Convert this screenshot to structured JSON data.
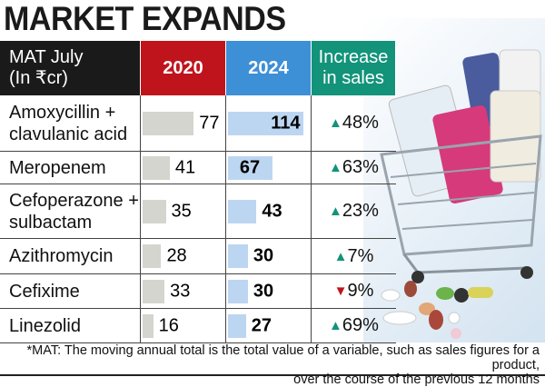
{
  "title": "MARKET EXPANDS",
  "header": {
    "label_line1": "MAT July",
    "label_line2": "(In ₹cr)",
    "col_2020": "2020",
    "col_2024": "2024",
    "inc_line1": "Increase",
    "inc_line2": "in sales"
  },
  "colors": {
    "header_label": "#1a1a1a",
    "header_2020": "#c0141c",
    "header_2024": "#3d8fd6",
    "header_increase": "#12937a",
    "bar_2020": "#d5d5cf",
    "bar_2024": "#bcd6f2",
    "up": "#12937a",
    "down": "#c0141c"
  },
  "chart_data": {
    "type": "table",
    "categories": [
      "Amoxycillin + clavulanic acid",
      "Meropenem",
      "Cefoperazone + sulbactam",
      "Azithromycin",
      "Cefixime",
      "Linezolid"
    ],
    "series": [
      {
        "name": "2020",
        "values": [
          77,
          41,
          35,
          28,
          33,
          16
        ]
      },
      {
        "name": "2024",
        "values": [
          114,
          67,
          43,
          30,
          30,
          27
        ]
      }
    ],
    "increase": [
      {
        "dir": "up",
        "text": "48%"
      },
      {
        "dir": "up",
        "text": "63%"
      },
      {
        "dir": "up",
        "text": "23%"
      },
      {
        "dir": "up",
        "text": "7%"
      },
      {
        "dir": "down",
        "text": "9%"
      },
      {
        "dir": "up",
        "text": "69%"
      }
    ]
  },
  "rows": [
    {
      "l1": "Amoxycillin +",
      "l2": "clavulanic acid",
      "v20": "77",
      "v24": "114",
      "inc": "48%"
    },
    {
      "l1": "Meropenem",
      "l2": "",
      "v20": "41",
      "v24": "67",
      "inc": "63%"
    },
    {
      "l1": "Cefoperazone +",
      "l2": "sulbactam",
      "v20": "35",
      "v24": "43",
      "inc": "23%"
    },
    {
      "l1": "Azithromycin",
      "l2": "",
      "v20": "28",
      "v24": "30",
      "inc": "7%"
    },
    {
      "l1": "Cefixime",
      "l2": "",
      "v20": "33",
      "v24": "30",
      "inc": "9%"
    },
    {
      "l1": "Linezolid",
      "l2": "",
      "v20": "16",
      "v24": "27",
      "inc": "69%"
    }
  ],
  "footnote": {
    "line1": "*MAT: The moving annual total is the total value of a variable, such as sales figures for a product,",
    "line2": "over the course of the previous 12 months"
  }
}
